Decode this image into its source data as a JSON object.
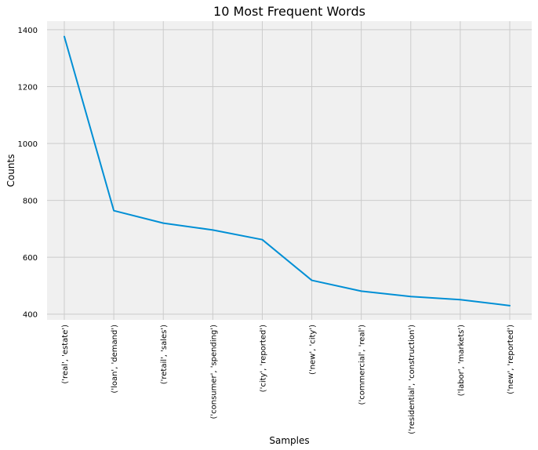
{
  "chart_data": {
    "type": "line",
    "title": "10 Most Frequent Words",
    "xlabel": "Samples",
    "ylabel": "Counts",
    "categories": [
      "('real', 'estate')",
      "('loan', 'demand')",
      "('retail', 'sales')",
      "('consumer', 'spending')",
      "('city', 'reported')",
      "('new', 'city')",
      "('commercial', 'real')",
      "('residential', 'construction')",
      "('labor', 'markets')",
      "('new', 'reported')"
    ],
    "values": [
      1376,
      764,
      720,
      696,
      662,
      519,
      481,
      462,
      451,
      430
    ],
    "yticks": [
      400,
      600,
      800,
      1000,
      1200,
      1400
    ],
    "ylim": [
      380,
      1430
    ],
    "grid": true,
    "colors": {
      "line": "#008fd5",
      "plot_background": "#f0f0f0",
      "grid": "#cbcbcb"
    }
  }
}
